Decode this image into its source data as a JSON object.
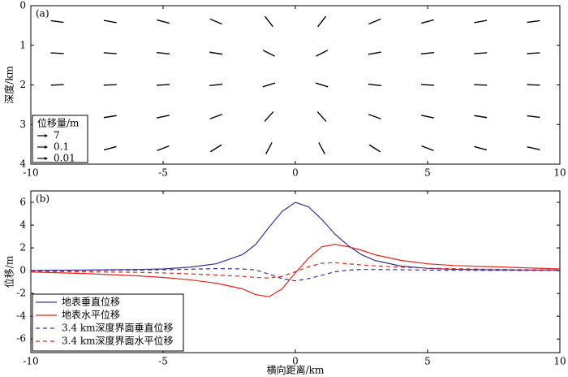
{
  "chart_data": [
    {
      "type": "quiver",
      "label": "(a)",
      "ylabel": "深度/km",
      "x": [
        -9,
        -7,
        -5,
        -3,
        -1,
        1,
        3,
        5,
        7,
        9,
        -9,
        -7,
        -5,
        -3,
        -1,
        1,
        3,
        5,
        7,
        9,
        -9,
        -7,
        -5,
        -3,
        -1,
        1,
        3,
        5,
        7,
        9,
        -9,
        -7,
        -5,
        -3,
        -1,
        1,
        3,
        5,
        7,
        9,
        -9,
        -7,
        -5,
        -3,
        -1,
        1,
        3,
        5,
        7,
        9
      ],
      "y": [
        0.4,
        0.4,
        0.4,
        0.4,
        0.4,
        0.4,
        0.4,
        0.4,
        0.4,
        0.4,
        1.2,
        1.2,
        1.2,
        1.2,
        1.2,
        1.2,
        1.2,
        1.2,
        1.2,
        1.2,
        2,
        2,
        2,
        2,
        2,
        2,
        2,
        2,
        2,
        2,
        2.8,
        2.8,
        2.8,
        2.8,
        2.8,
        2.8,
        2.8,
        2.8,
        2.8,
        2.8,
        3.6,
        3.6,
        3.6,
        3.6,
        3.6,
        3.6,
        3.6,
        3.6,
        3.6,
        3.6
      ],
      "angle": [
        172,
        170,
        165,
        157,
        128,
        52,
        23,
        15,
        10,
        8,
        177,
        176,
        174,
        171,
        153,
        27,
        10,
        6,
        4,
        3,
        -178,
        -178,
        -177,
        -174,
        -163,
        -17,
        -6,
        -3,
        -2,
        -2,
        -173,
        -171,
        -168,
        -160,
        -132,
        -48,
        -20,
        -12,
        -9,
        -7,
        -168,
        -165,
        -159,
        -148,
        -118,
        -62,
        -32,
        -21,
        -15,
        -12
      ],
      "xlim": [
        -10,
        10
      ],
      "ylim": [
        0,
        4
      ],
      "invert_y": true,
      "xticks": [
        -10,
        -5,
        0,
        5,
        10
      ],
      "yticks": [
        0,
        1,
        2,
        3,
        4
      ],
      "color": "#000000",
      "legend_title": "位移量/m",
      "legend_values": [
        7,
        0.1,
        0.01
      ],
      "legend": "lower left"
    },
    {
      "type": "line",
      "label": "(b)",
      "xlabel": "横向距离/km",
      "ylabel": "位移/m",
      "x": [
        -10,
        -8,
        -6,
        -5,
        -4,
        -3,
        -2,
        -1.5,
        -1,
        -0.5,
        0,
        0.5,
        1,
        1.5,
        2,
        2.5,
        3,
        4,
        5,
        6,
        8,
        10
      ],
      "series": [
        {
          "name": "地表垂直位移",
          "color": "#33339c",
          "dash": false,
          "values": [
            0.02,
            0.05,
            0.1,
            0.15,
            0.3,
            0.6,
            1.4,
            2.3,
            3.8,
            5.2,
            6,
            5.6,
            4.5,
            3.2,
            2.2,
            1.4,
            0.9,
            0.4,
            0.2,
            0.12,
            0.06,
            0.03
          ]
        },
        {
          "name": "地表水平位移",
          "color": "#e8231a",
          "dash": false,
          "values": [
            -0.12,
            -0.25,
            -0.45,
            -0.6,
            -0.8,
            -1.1,
            -1.6,
            -2.1,
            -2.3,
            -1.6,
            -0.2,
            1.1,
            2.1,
            2.3,
            2.1,
            1.8,
            1.4,
            0.9,
            0.6,
            0.45,
            0.3,
            0.15
          ]
        },
        {
          "name": "3.4 km深度界面垂直位移",
          "color": "#33339c",
          "dash": true,
          "values": [
            0,
            0.02,
            0.05,
            0.08,
            0.12,
            0.18,
            0.15,
            0.05,
            -0.3,
            -0.7,
            -0.9,
            -0.7,
            -0.4,
            -0.1,
            0.05,
            0.1,
            0.1,
            0.08,
            0.05,
            0.03,
            0.02,
            0.01
          ]
        },
        {
          "name": "3.4 km深度界面水平位移",
          "color": "#e8231a",
          "dash": true,
          "values": [
            -0.05,
            -0.1,
            -0.15,
            -0.2,
            -0.28,
            -0.38,
            -0.5,
            -0.6,
            -0.65,
            -0.5,
            -0.1,
            0.35,
            0.65,
            0.7,
            0.6,
            0.5,
            0.42,
            0.3,
            0.22,
            0.17,
            0.1,
            0.06
          ]
        }
      ],
      "xlim": [
        -10,
        10
      ],
      "ylim": [
        -7.2,
        7
      ],
      "xticks": [
        -10,
        -5,
        0,
        5,
        10
      ],
      "yticks": [
        -6,
        -4,
        -2,
        0,
        2,
        4,
        6
      ],
      "legend": "lower left"
    }
  ]
}
